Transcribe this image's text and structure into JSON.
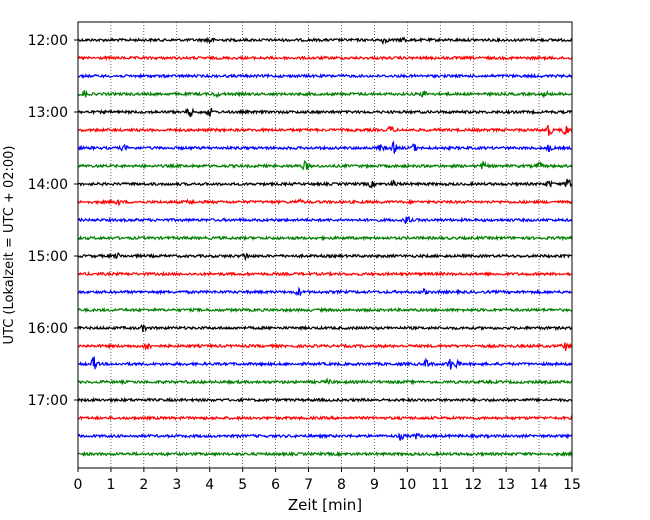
{
  "chart_data": {
    "type": "line",
    "title": "",
    "xlabel": "Zeit  [min]",
    "ylabel": "UTC (Lokalzeit = UTC + 02:00)",
    "xlim": [
      0,
      15
    ],
    "x_ticks": [
      "0",
      "1",
      "2",
      "3",
      "4",
      "5",
      "6",
      "7",
      "8",
      "9",
      "10",
      "11",
      "12",
      "13",
      "14",
      "15"
    ],
    "y_tick_labels": [
      "12:00",
      "13:00",
      "14:00",
      "15:00",
      "16:00",
      "17:00"
    ],
    "row_minutes": 15,
    "grid": "vertical dotted at each minute",
    "color_cycle": [
      "#000000",
      "#ff0000",
      "#0000ff",
      "#008000"
    ],
    "rows": [
      {
        "start": "12:00",
        "color": "#000000",
        "events": [
          [
            4.0,
            0.7
          ],
          [
            9.3,
            0.6
          ],
          [
            9.9,
            0.5
          ]
        ]
      },
      {
        "start": "12:15",
        "color": "#ff0000",
        "events": []
      },
      {
        "start": "12:30",
        "color": "#0000ff",
        "events": []
      },
      {
        "start": "12:45",
        "color": "#008000",
        "events": [
          [
            0.2,
            0.6
          ],
          [
            4.2,
            0.4
          ],
          [
            10.5,
            0.5
          ],
          [
            14.2,
            0.4
          ]
        ]
      },
      {
        "start": "13:00",
        "color": "#000000",
        "events": [
          [
            3.4,
            1.0
          ],
          [
            4.0,
            0.8
          ]
        ]
      },
      {
        "start": "13:15",
        "color": "#ff0000",
        "events": [
          [
            9.5,
            0.7
          ],
          [
            14.3,
            1.2
          ],
          [
            14.8,
            1.0
          ]
        ]
      },
      {
        "start": "13:30",
        "color": "#0000ff",
        "events": [
          [
            1.4,
            0.5
          ],
          [
            9.2,
            0.6
          ],
          [
            9.6,
            1.0
          ],
          [
            10.2,
            0.7
          ],
          [
            14.3,
            0.6
          ]
        ]
      },
      {
        "start": "13:45",
        "color": "#008000",
        "events": [
          [
            6.9,
            0.8
          ],
          [
            12.3,
            0.7
          ],
          [
            14.0,
            0.6
          ]
        ]
      },
      {
        "start": "14:00",
        "color": "#000000",
        "events": [
          [
            8.9,
            0.5
          ],
          [
            9.6,
            0.6
          ],
          [
            14.3,
            0.6
          ],
          [
            14.9,
            1.4
          ]
        ]
      },
      {
        "start": "14:15",
        "color": "#ff0000",
        "events": [
          [
            1.2,
            0.5
          ],
          [
            3.4,
            0.4
          ],
          [
            6.7,
            0.4
          ]
        ]
      },
      {
        "start": "14:30",
        "color": "#0000ff",
        "events": [
          [
            10.0,
            0.8
          ]
        ]
      },
      {
        "start": "14:45",
        "color": "#008000",
        "events": []
      },
      {
        "start": "15:00",
        "color": "#000000",
        "events": [
          [
            1.2,
            0.4
          ],
          [
            5.1,
            0.6
          ]
        ]
      },
      {
        "start": "15:15",
        "color": "#ff0000",
        "events": []
      },
      {
        "start": "15:30",
        "color": "#0000ff",
        "events": [
          [
            6.7,
            0.7
          ],
          [
            10.5,
            0.4
          ]
        ]
      },
      {
        "start": "15:45",
        "color": "#008000",
        "events": []
      },
      {
        "start": "16:00",
        "color": "#000000",
        "events": [
          [
            2.0,
            0.6
          ]
        ]
      },
      {
        "start": "16:15",
        "color": "#ff0000",
        "events": [
          [
            2.1,
            1.0
          ],
          [
            14.8,
            0.8
          ]
        ]
      },
      {
        "start": "16:30",
        "color": "#0000ff",
        "events": [
          [
            0.5,
            1.4
          ],
          [
            10.6,
            0.8
          ],
          [
            11.3,
            1.0
          ],
          [
            11.5,
            0.7
          ]
        ]
      },
      {
        "start": "16:45",
        "color": "#008000",
        "events": [
          [
            7.6,
            0.4
          ]
        ]
      },
      {
        "start": "17:00",
        "color": "#000000",
        "events": []
      },
      {
        "start": "17:15",
        "color": "#ff0000",
        "events": []
      },
      {
        "start": "17:30",
        "color": "#0000ff",
        "events": [
          [
            9.8,
            0.6
          ],
          [
            10.3,
            0.5
          ]
        ]
      },
      {
        "start": "17:45",
        "color": "#008000",
        "events": []
      }
    ]
  }
}
